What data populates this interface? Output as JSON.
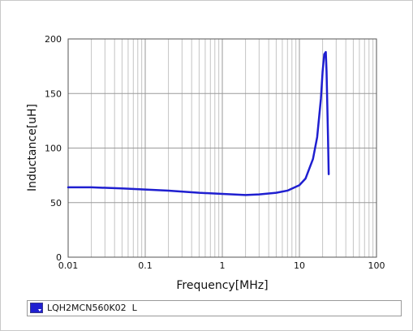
{
  "chart_data": {
    "type": "line",
    "title": "",
    "xlabel": "Frequency[MHz]",
    "ylabel": "Inductance[uH]",
    "xscale": "log",
    "xlim": [
      0.01,
      100
    ],
    "ylim": [
      0,
      200
    ],
    "x_ticks": [
      "0.01",
      "0.1",
      "1",
      "10",
      "100"
    ],
    "y_ticks": [
      "0",
      "50",
      "100",
      "150",
      "200"
    ],
    "grid": true,
    "legend_position": "bottom",
    "series": [
      {
        "name": "LQH2MCN560K02  L",
        "color": "#1f1fd0",
        "x": [
          0.01,
          0.02,
          0.05,
          0.1,
          0.2,
          0.5,
          1,
          2,
          3,
          5,
          7,
          10,
          12,
          15,
          17,
          19,
          20,
          21,
          22,
          22.5,
          23,
          23.5,
          24
        ],
        "y": [
          64,
          64,
          63,
          62,
          61,
          59,
          58,
          57,
          57.5,
          59,
          61,
          66,
          72,
          90,
          110,
          145,
          170,
          186,
          188,
          170,
          140,
          110,
          76
        ]
      }
    ]
  }
}
